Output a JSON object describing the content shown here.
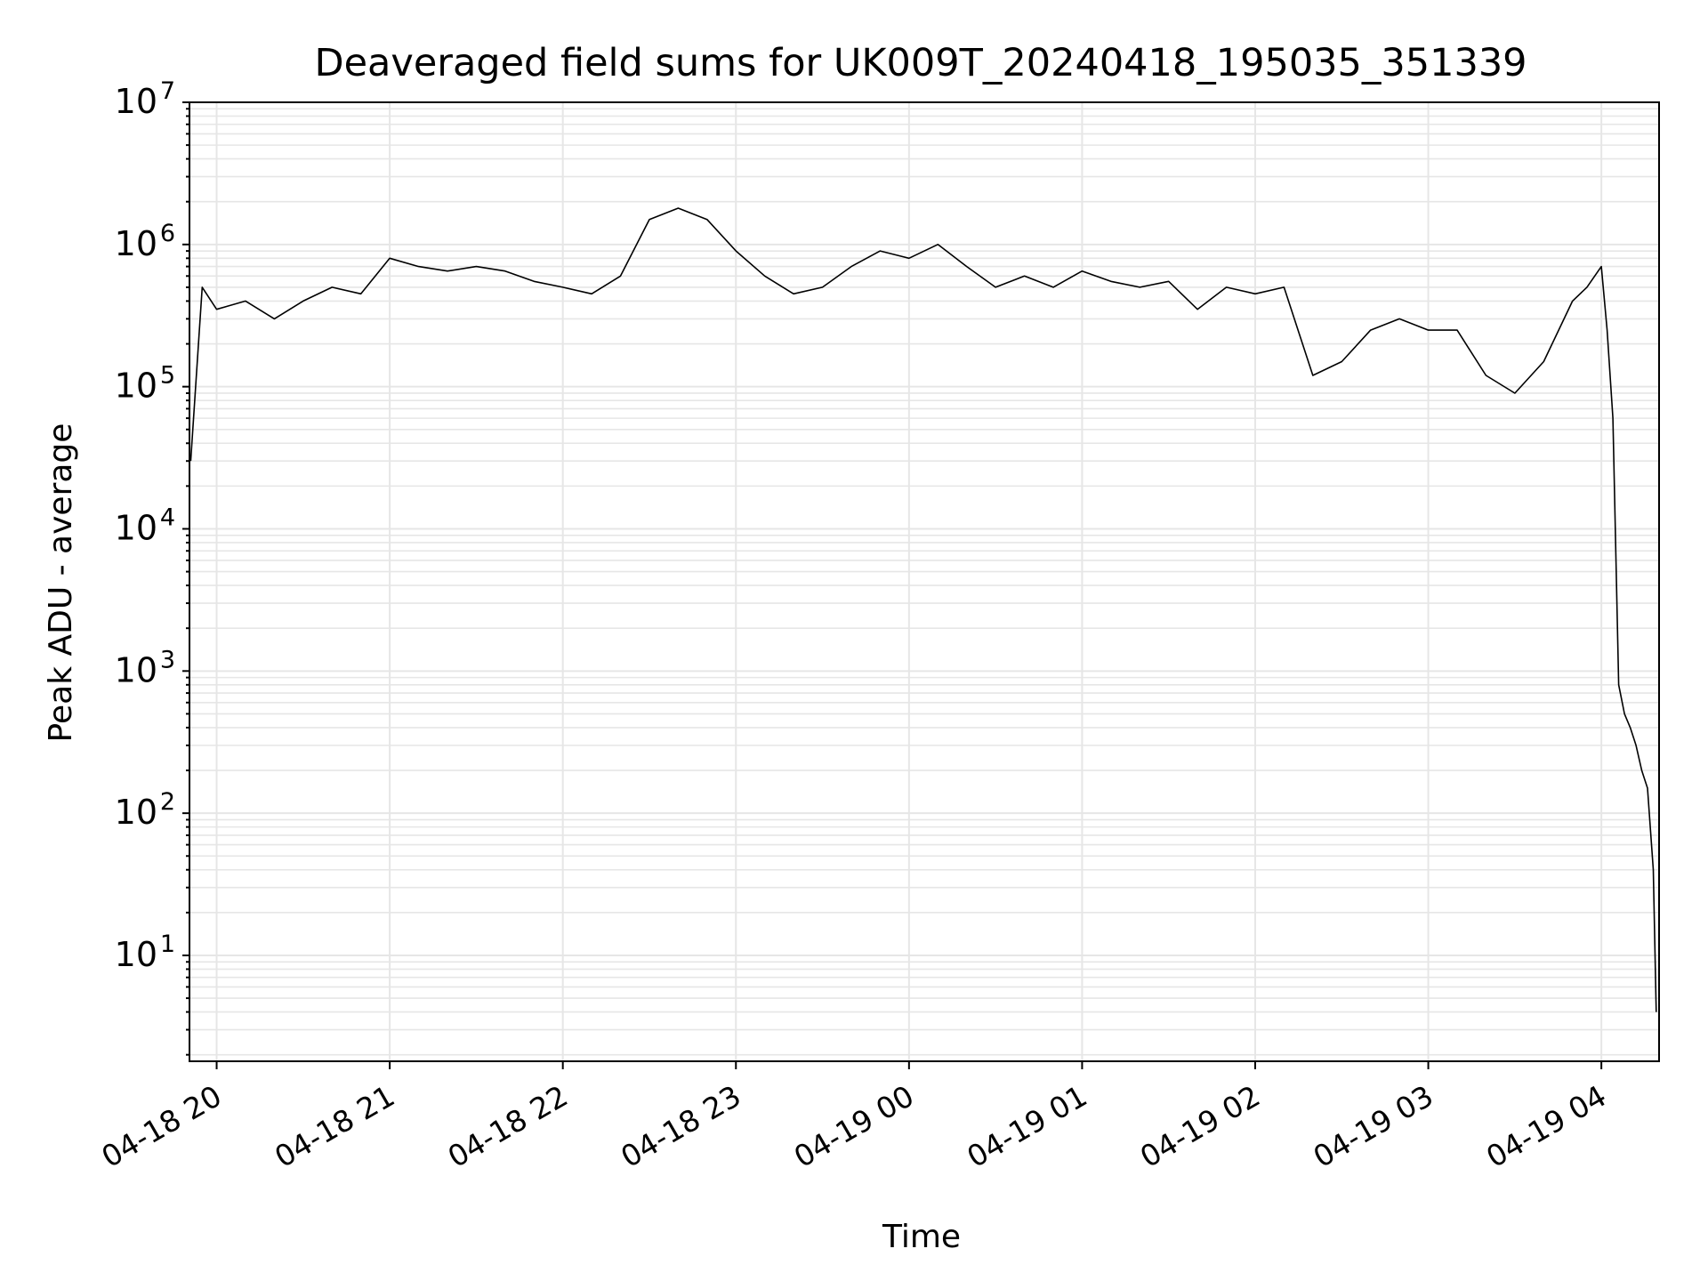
{
  "chart_data": {
    "type": "line",
    "title": "Deaveraged field sums for UK009T_20240418_195035_351339",
    "xlabel": "Time",
    "ylabel": "Peak ADU - average",
    "y_scale": "log",
    "ylim": [
      1.8,
      10000000
    ],
    "xlim": [
      "2024-04-18 19:50:35",
      "2024-04-19 04:20:00"
    ],
    "grid": true,
    "line_color": "#000000",
    "grid_color": "#e6e6e6",
    "x_tick_labels": [
      "04-18 20",
      "04-18 21",
      "04-18 22",
      "04-18 23",
      "04-19 00",
      "04-19 01",
      "04-19 02",
      "04-19 03",
      "04-19 04"
    ],
    "x_tick_values": [
      "2024-04-18 20:00",
      "2024-04-18 21:00",
      "2024-04-18 22:00",
      "2024-04-18 23:00",
      "2024-04-19 00:00",
      "2024-04-19 01:00",
      "2024-04-19 02:00",
      "2024-04-19 03:00",
      "2024-04-19 04:00"
    ],
    "y_ticks": [
      {
        "base": "10",
        "exp": "1",
        "value": 10
      },
      {
        "base": "10",
        "exp": "2",
        "value": 100
      },
      {
        "base": "10",
        "exp": "3",
        "value": 1000
      },
      {
        "base": "10",
        "exp": "4",
        "value": 10000
      },
      {
        "base": "10",
        "exp": "5",
        "value": 100000
      },
      {
        "base": "10",
        "exp": "6",
        "value": 1000000
      },
      {
        "base": "10",
        "exp": "7",
        "value": 10000000
      }
    ],
    "series": [
      {
        "x": [
          "2024-04-18 19:51",
          "2024-04-18 19:55",
          "2024-04-18 20:00",
          "2024-04-18 20:10",
          "2024-04-18 20:20",
          "2024-04-18 20:30",
          "2024-04-18 20:40",
          "2024-04-18 20:50",
          "2024-04-18 21:00",
          "2024-04-18 21:10",
          "2024-04-18 21:20",
          "2024-04-18 21:30",
          "2024-04-18 21:40",
          "2024-04-18 21:50",
          "2024-04-18 22:00",
          "2024-04-18 22:10",
          "2024-04-18 22:20",
          "2024-04-18 22:30",
          "2024-04-18 22:40",
          "2024-04-18 22:50",
          "2024-04-18 23:00",
          "2024-04-18 23:10",
          "2024-04-18 23:20",
          "2024-04-18 23:30",
          "2024-04-18 23:40",
          "2024-04-18 23:50",
          "2024-04-19 00:00",
          "2024-04-19 00:10",
          "2024-04-19 00:20",
          "2024-04-19 00:30",
          "2024-04-19 00:40",
          "2024-04-19 00:50",
          "2024-04-19 01:00",
          "2024-04-19 01:10",
          "2024-04-19 01:20",
          "2024-04-19 01:30",
          "2024-04-19 01:40",
          "2024-04-19 01:50",
          "2024-04-19 02:00",
          "2024-04-19 02:10",
          "2024-04-19 02:20",
          "2024-04-19 02:30",
          "2024-04-19 02:40",
          "2024-04-19 02:50",
          "2024-04-19 03:00",
          "2024-04-19 03:10",
          "2024-04-19 03:20",
          "2024-04-19 03:30",
          "2024-04-19 03:40",
          "2024-04-19 03:50",
          "2024-04-19 03:55",
          "2024-04-19 04:00",
          "2024-04-19 04:02",
          "2024-04-19 04:04",
          "2024-04-19 04:06",
          "2024-04-19 04:08",
          "2024-04-19 04:10",
          "2024-04-19 04:12",
          "2024-04-19 04:14",
          "2024-04-19 04:16",
          "2024-04-19 04:18",
          "2024-04-19 04:19"
        ],
        "y": [
          30000,
          500000,
          350000,
          400000,
          300000,
          400000,
          500000,
          450000,
          800000,
          700000,
          650000,
          700000,
          650000,
          550000,
          500000,
          450000,
          600000,
          1500000,
          1800000,
          1500000,
          900000,
          600000,
          450000,
          500000,
          700000,
          900000,
          800000,
          1000000,
          700000,
          500000,
          600000,
          500000,
          650000,
          550000,
          500000,
          550000,
          350000,
          500000,
          450000,
          500000,
          120000,
          150000,
          250000,
          300000,
          250000,
          250000,
          120000,
          90000,
          150000,
          400000,
          500000,
          700000,
          250000,
          60000,
          800,
          500,
          400,
          300,
          200,
          150,
          40,
          4
        ]
      }
    ]
  }
}
